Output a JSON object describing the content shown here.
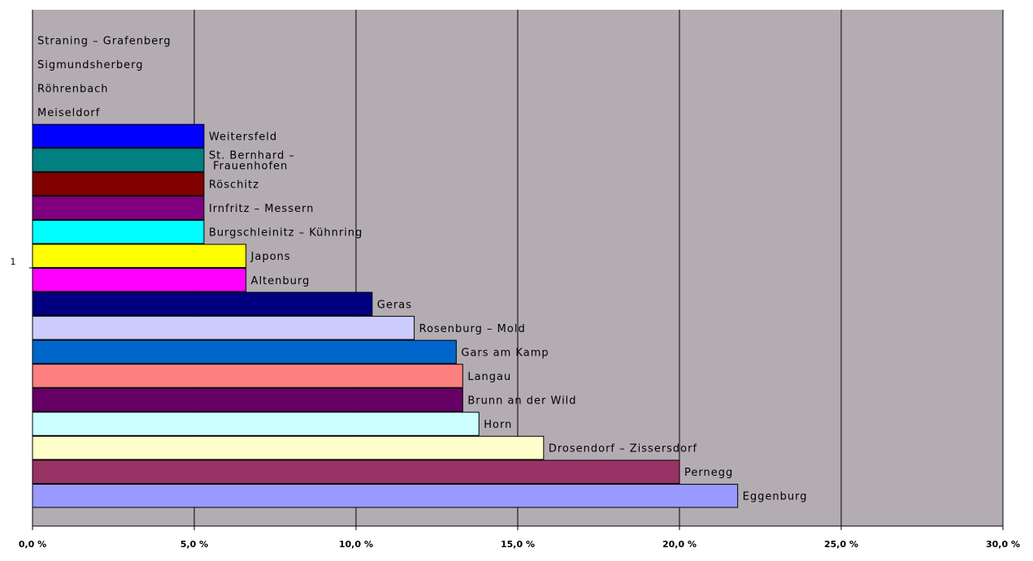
{
  "chart_data": {
    "type": "bar",
    "orientation": "horizontal",
    "title": "",
    "xlabel": "",
    "ylabel": "",
    "y_category": "1",
    "xlim": [
      0,
      30
    ],
    "x_ticks": [
      "0,0 %",
      "5,0 %",
      "10,0 %",
      "15,0 %",
      "20,0 %",
      "25,0 %",
      "30,0 %"
    ],
    "grid": "vertical",
    "plot_background": "#b3adb3",
    "legend": "none",
    "series": [
      {
        "label": "Straning – Grafenberg",
        "value": 0.0,
        "color": "#b3adb3",
        "lines": [
          "Straning – Grafenberg"
        ]
      },
      {
        "label": "Sigmundsherberg",
        "value": 0.0,
        "color": "#b3adb3",
        "lines": [
          "Sigmundsherberg"
        ]
      },
      {
        "label": "Röhrenbach",
        "value": 0.0,
        "color": "#b3adb3",
        "lines": [
          "Röhrenbach"
        ]
      },
      {
        "label": "Meiseldorf",
        "value": 0.0,
        "color": "#b3adb3",
        "lines": [
          "Meiseldorf"
        ]
      },
      {
        "label": "Weitersfeld",
        "value": 5.3,
        "color": "#0000ff",
        "lines": [
          "Weitersfeld"
        ]
      },
      {
        "label": "St. Bernhard – Frauenhofen",
        "value": 5.3,
        "color": "#008080",
        "lines": [
          "St. Bernhard –",
          " Frauenhofen"
        ]
      },
      {
        "label": "Röschitz",
        "value": 5.3,
        "color": "#800000",
        "lines": [
          "Röschitz"
        ]
      },
      {
        "label": "Irnfritz – Messern",
        "value": 5.3,
        "color": "#800080",
        "lines": [
          "Irnfritz – Messern"
        ]
      },
      {
        "label": "Burgschleinitz – Kühnring",
        "value": 5.3,
        "color": "#00ffff",
        "lines": [
          "Burgschleinitz – Kühnring"
        ]
      },
      {
        "label": "Japons",
        "value": 6.6,
        "color": "#ffff00",
        "lines": [
          "Japons"
        ]
      },
      {
        "label": "Altenburg",
        "value": 6.6,
        "color": "#ff00ff",
        "lines": [
          "Altenburg"
        ]
      },
      {
        "label": "Geras",
        "value": 10.5,
        "color": "#000080",
        "lines": [
          "Geras"
        ]
      },
      {
        "label": "Rosenburg – Mold",
        "value": 11.8,
        "color": "#ccccff",
        "lines": [
          "Rosenburg – Mold"
        ]
      },
      {
        "label": "Gars am Kamp",
        "value": 13.1,
        "color": "#0066cc",
        "lines": [
          "Gars am Kamp"
        ]
      },
      {
        "label": "Langau",
        "value": 13.3,
        "color": "#ff8080",
        "lines": [
          "Langau"
        ]
      },
      {
        "label": "Brunn an der Wild",
        "value": 13.3,
        "color": "#660066",
        "lines": [
          "Brunn an der Wild"
        ]
      },
      {
        "label": "Horn",
        "value": 13.8,
        "color": "#ccffff",
        "lines": [
          "Horn"
        ]
      },
      {
        "label": "Drosendorf – Zissersdorf",
        "value": 15.8,
        "color": "#ffffcc",
        "lines": [
          "Drosendorf – Zissersdorf"
        ]
      },
      {
        "label": "Pernegg",
        "value": 20.0,
        "color": "#993366",
        "lines": [
          "Pernegg"
        ]
      },
      {
        "label": "Eggenburg",
        "value": 21.8,
        "color": "#9999ff",
        "lines": [
          "Eggenburg"
        ]
      }
    ]
  }
}
